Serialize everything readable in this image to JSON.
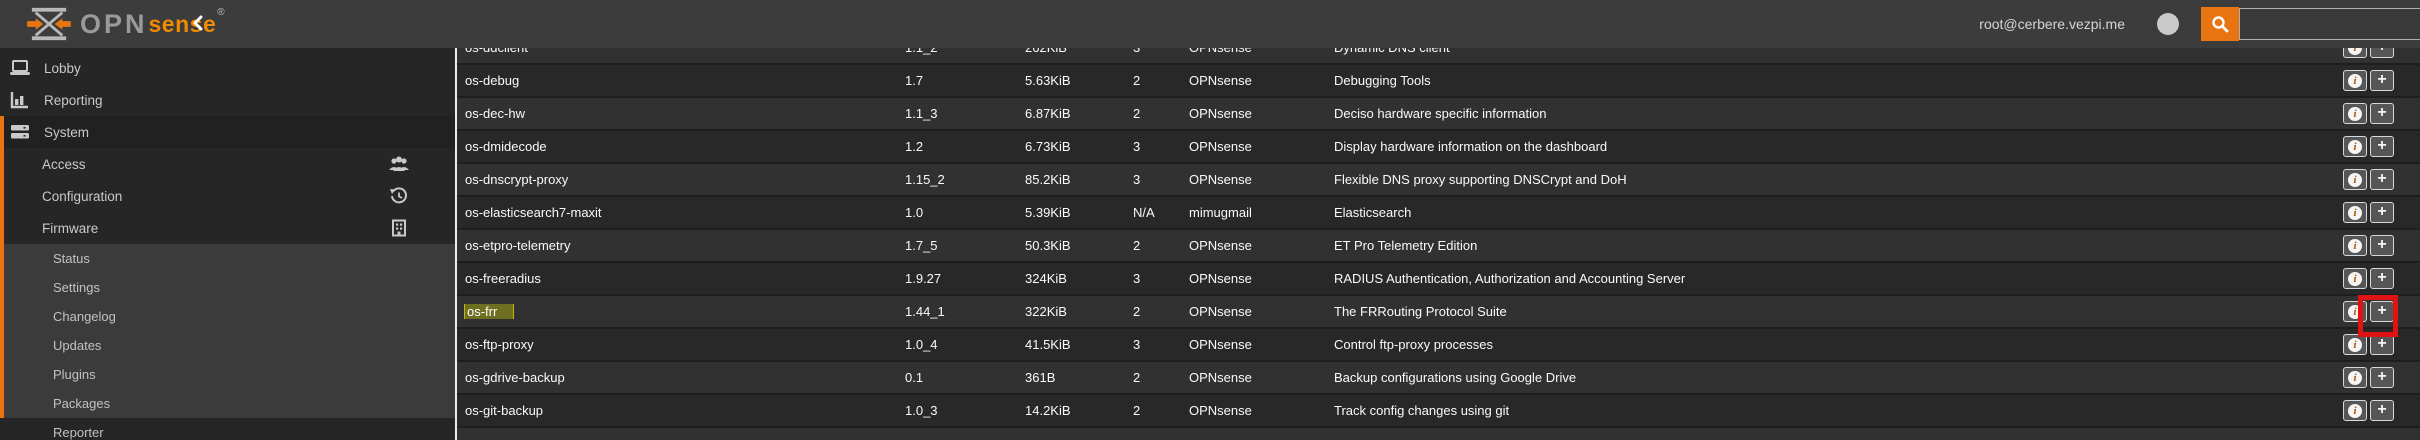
{
  "colors": {
    "accent_orange": "#e87511",
    "brand_sense_orange": "#f08a00",
    "annotation_red": "#e01212",
    "search_match_yellow": "#ded000"
  },
  "topbar": {
    "brand_opn": "OPN",
    "brand_sense": "sense",
    "brand_reg": "®",
    "collapse_icon": "chevron-left",
    "user": "root@cerbere.vezpi.me",
    "search": {
      "value": "",
      "placeholder": ""
    }
  },
  "sidebar": {
    "rows": [
      {
        "label": "Lobby",
        "icon": "laptop-icon",
        "cls": "lvl1"
      },
      {
        "label": "Reporting",
        "icon": "chart-icon",
        "cls": "lvl1"
      },
      {
        "label": "System",
        "icon": "server-icon",
        "cls": "lvl1 group-head in-group"
      },
      {
        "label": "Access",
        "right_icon": "users-icon",
        "cls": "lvl2 in-group"
      },
      {
        "label": "Configuration",
        "right_icon": "history-icon",
        "cls": "lvl2 in-group"
      },
      {
        "label": "Firmware",
        "right_icon": "building-icon",
        "cls": "lvl2 in-group"
      },
      {
        "label": "Status",
        "cls": "lvl3 panel in-group"
      },
      {
        "label": "Settings",
        "cls": "lvl3 panel in-group"
      },
      {
        "label": "Changelog",
        "cls": "lvl3 panel in-group"
      },
      {
        "label": "Updates",
        "cls": "lvl3 panel in-group"
      },
      {
        "label": "Plugins",
        "cls": "lvl3 panel in-group"
      },
      {
        "label": "Packages",
        "cls": "lvl3 panel in-group"
      },
      {
        "label": "Reporter",
        "cls": "lvl3"
      }
    ]
  },
  "table": {
    "rows": [
      {
        "name": "os-ddclient",
        "version": "1.1_2",
        "size": "262KiB",
        "license": "3",
        "repository": "OPNsense",
        "comment": "Dynamic DNS client",
        "partial": "top"
      },
      {
        "name": "os-debug",
        "version": "1.7",
        "size": "5.63KiB",
        "license": "2",
        "repository": "OPNsense",
        "comment": "Debugging Tools"
      },
      {
        "name": "os-dec-hw",
        "version": "1.1_3",
        "size": "6.87KiB",
        "license": "2",
        "repository": "OPNsense",
        "comment": "Deciso hardware specific information"
      },
      {
        "name": "os-dmidecode",
        "version": "1.2",
        "size": "6.73KiB",
        "license": "3",
        "repository": "OPNsense",
        "comment": "Display hardware information on the dashboard"
      },
      {
        "name": "os-dnscrypt-proxy",
        "version": "1.15_2",
        "size": "85.2KiB",
        "license": "3",
        "repository": "OPNsense",
        "comment": "Flexible DNS proxy supporting DNSCrypt and DoH"
      },
      {
        "name": "os-elasticsearch7-maxit",
        "version": "1.0",
        "size": "5.39KiB",
        "license": "N/A",
        "repository": "mimugmail",
        "comment": "Elasticsearch"
      },
      {
        "name": "os-etpro-telemetry",
        "version": "1.7_5",
        "size": "50.3KiB",
        "license": "2",
        "repository": "OPNsense",
        "comment": "ET Pro Telemetry Edition"
      },
      {
        "name": "os-freeradius",
        "version": "1.9.27",
        "size": "324KiB",
        "license": "3",
        "repository": "OPNsense",
        "comment": "RADIUS Authentication, Authorization and Accounting Server"
      },
      {
        "name": "os-frr",
        "version": "1.44_1",
        "size": "322KiB",
        "license": "2",
        "repository": "OPNsense",
        "comment": "The FRRouting Protocol Suite",
        "highlighted": true,
        "annotated": true
      },
      {
        "name": "os-ftp-proxy",
        "version": "1.0_4",
        "size": "41.5KiB",
        "license": "3",
        "repository": "OPNsense",
        "comment": "Control ftp-proxy processes"
      },
      {
        "name": "os-gdrive-backup",
        "version": "0.1",
        "size": "361B",
        "license": "2",
        "repository": "OPNsense",
        "comment": "Backup configurations using Google Drive"
      },
      {
        "name": "os-git-backup",
        "version": "1.0_3",
        "size": "14.2KiB",
        "license": "2",
        "repository": "OPNsense",
        "comment": "Track config changes using git"
      },
      {
        "name": "",
        "version": "",
        "size": "",
        "license": "",
        "repository": "",
        "comment": "",
        "partial": "bottom"
      }
    ],
    "buttons": {
      "info": "i",
      "add": "+"
    }
  }
}
